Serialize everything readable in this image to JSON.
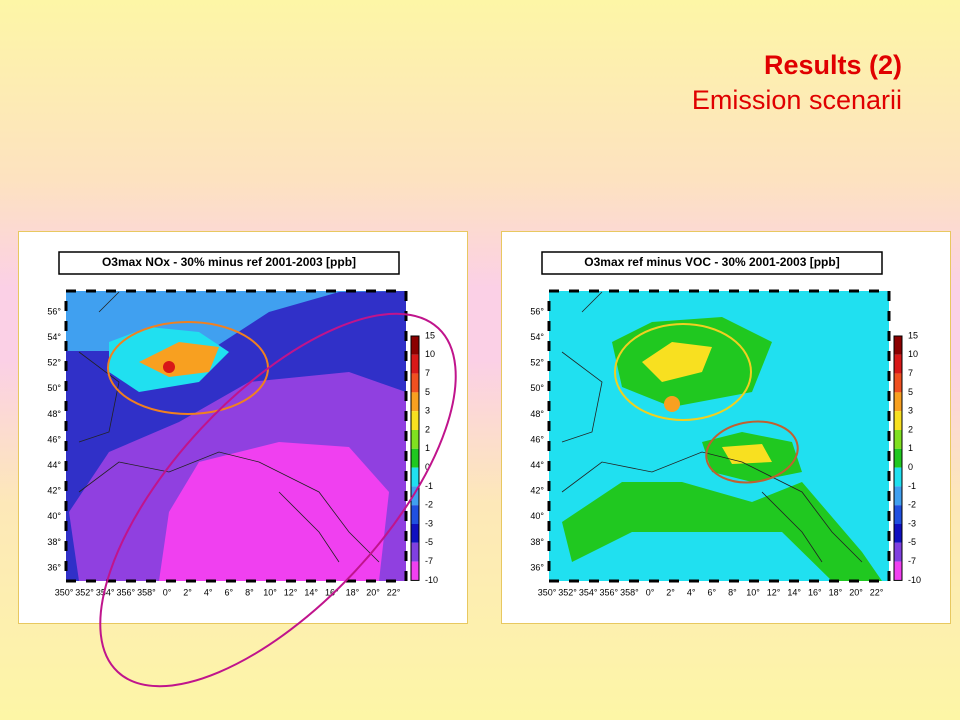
{
  "header": {
    "title": "Results (2)",
    "subtitle": "Emission scenarii"
  },
  "panels": [
    {
      "title": "O3max   NOx - 30% minus ref   2001-2003 [ppb]"
    },
    {
      "title": "O3max   ref minus VOC - 30%   2001-2003 [ppb]"
    }
  ],
  "latitude_labels": [
    "56°",
    "54°",
    "52°",
    "50°",
    "48°",
    "46°",
    "44°",
    "42°",
    "40°",
    "38°",
    "36°"
  ],
  "longitude_labels": [
    "350°",
    "352°",
    "354°",
    "356°",
    "358°",
    "0°",
    "2°",
    "4°",
    "6°",
    "8°",
    "10°",
    "12°",
    "14°",
    "16°",
    "18°",
    "20°",
    "22°"
  ],
  "colorbar_labels": [
    "15",
    "10",
    "7",
    "5",
    "3",
    "2",
    "1",
    "0",
    "-1",
    "-2",
    "-3",
    "-5",
    "-7",
    "-10"
  ]
}
